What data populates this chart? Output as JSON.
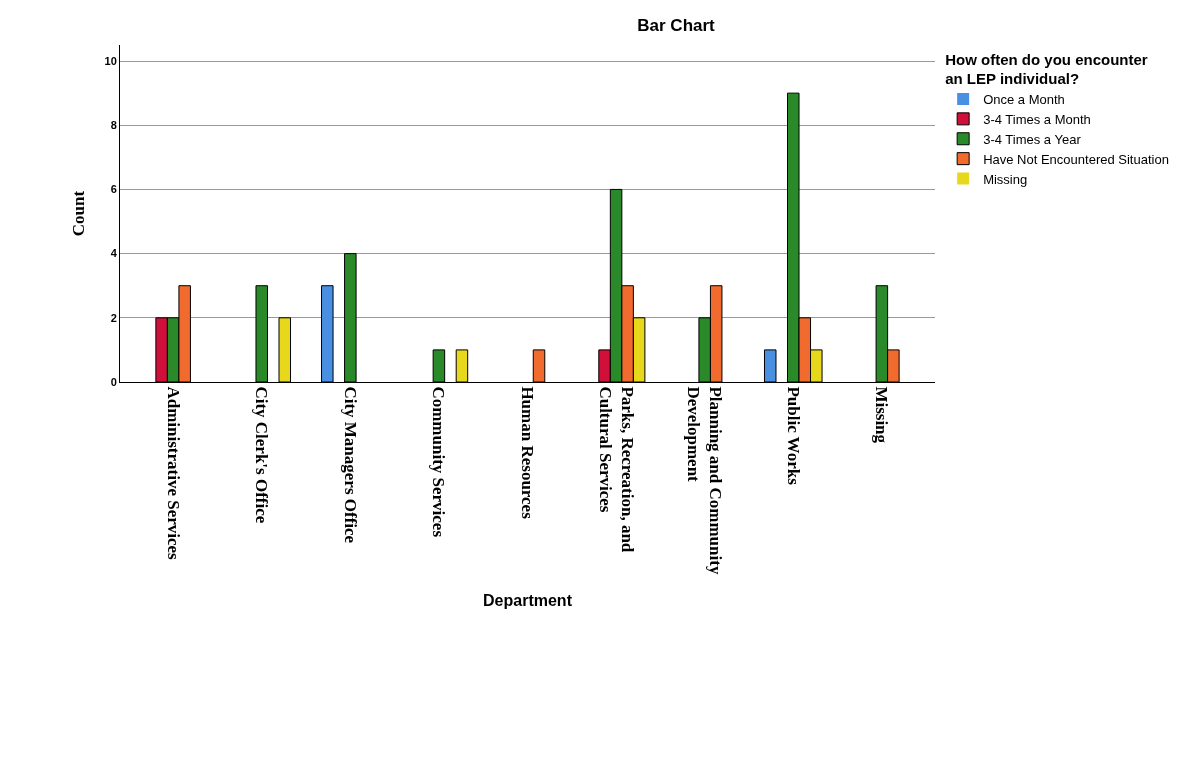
{
  "chart_data": {
    "type": "bar",
    "title": "Bar Chart",
    "xlabel": "Department",
    "ylabel": "Count",
    "legend_title": "How often do you encounter\nan LEP individual?",
    "categories": [
      "Administrative Services",
      "City Clerk's Office",
      "City Managers Office",
      "Community Services",
      "Human Resources",
      "Parks, Recreation, and\nCultural Services",
      "Planning and Community\nDevelopment",
      "Public Works",
      "Missing"
    ],
    "series": [
      {
        "name": "Once a Month",
        "color": "#4a90e2",
        "values": [
          0,
          0,
          3,
          0,
          0,
          0,
          0,
          1,
          0
        ]
      },
      {
        "name": "3-4 Times a Month",
        "color": "#d0103a",
        "values": [
          2,
          0,
          0,
          0,
          0,
          1,
          0,
          0,
          0
        ]
      },
      {
        "name": "3-4 Times a Year",
        "color": "#2a8a2a",
        "values": [
          2,
          3,
          4,
          1,
          0,
          6,
          2,
          9,
          3
        ]
      },
      {
        "name": "Have Not Encountered Situation",
        "color": "#f26b2e",
        "values": [
          3,
          0,
          0,
          0,
          1,
          3,
          3,
          2,
          1
        ]
      },
      {
        "name": "Missing",
        "color": "#e8d81c",
        "values": [
          0,
          2,
          0,
          1,
          0,
          2,
          0,
          1,
          0
        ]
      }
    ],
    "ylim": [
      0,
      10.5
    ],
    "yticks": [
      0,
      2,
      4,
      6,
      8,
      10
    ],
    "grid": "y",
    "legend": "top right"
  }
}
